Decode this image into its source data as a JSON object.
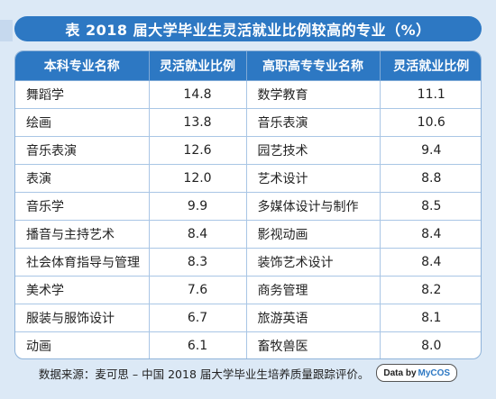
{
  "title": "表  2018 届大学毕业生灵活就业比例较高的专业（%）",
  "headers": [
    "本科专业名称",
    "灵活就业比例",
    "高职高专专业名称",
    "灵活就业比例"
  ],
  "rows": [
    [
      "舞蹈学",
      "14.8",
      "数学教育",
      "11.1"
    ],
    [
      "绘画",
      "13.8",
      "音乐表演",
      "10.6"
    ],
    [
      "音乐表演",
      "12.6",
      "园艺技术",
      "9.4"
    ],
    [
      "表演",
      "12.0",
      "艺术设计",
      "8.8"
    ],
    [
      "音乐学",
      "9.9",
      "多媒体设计与制作",
      "8.5"
    ],
    [
      "播音与主持艺术",
      "8.4",
      "影视动画",
      "8.4"
    ],
    [
      "社会体育指导与管理",
      "8.3",
      "装饰艺术设计",
      "8.4"
    ],
    [
      "美术学",
      "7.6",
      "商务管理",
      "8.2"
    ],
    [
      "服装与服饰设计",
      "6.7",
      "旅游英语",
      "8.1"
    ],
    [
      "动画",
      "6.1",
      "畜牧兽医",
      "8.0"
    ]
  ],
  "footer": {
    "source": "数据来源：麦可思 – 中国 2018 届大学毕业生培养质量跟踪评价。",
    "badge_prefix": "Data by",
    "badge_brand": "MyCOS"
  },
  "colors": {
    "header_blue": "#2d78c3",
    "background": "#dce9f6",
    "border": "#a9c6e5"
  }
}
